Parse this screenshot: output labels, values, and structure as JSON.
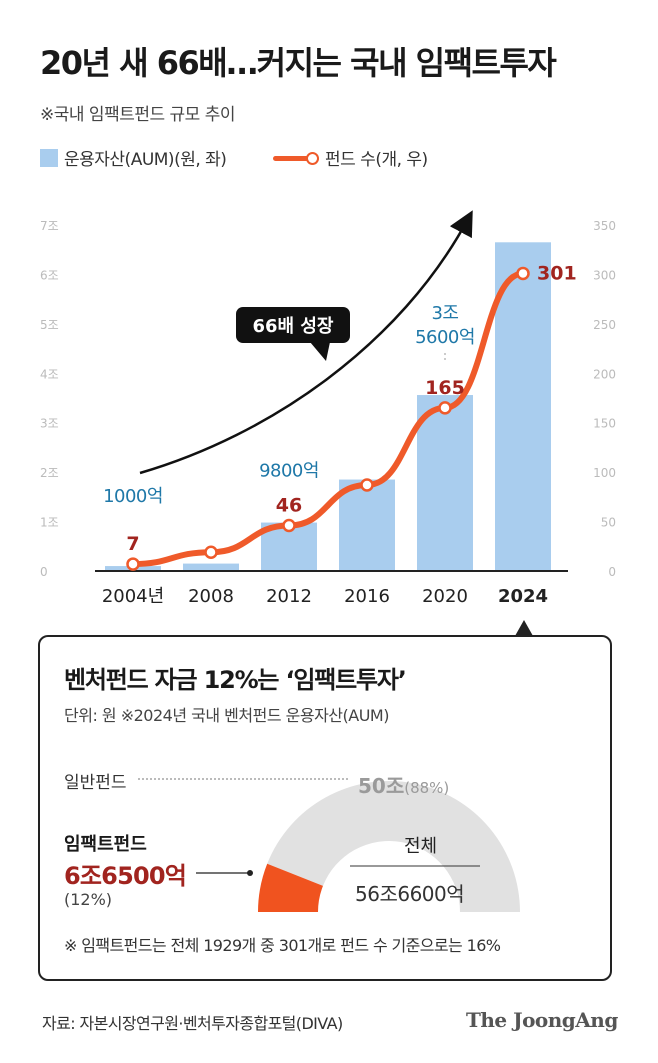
{
  "header": {
    "title": "20년 새 66배…커지는 국내 임팩트투자",
    "subtitle": "※국내 임팩트펀드 규모 추이"
  },
  "legend": {
    "bar": "운용자산(AUM)(원, 좌)",
    "line": "펀드 수(개, 우)"
  },
  "colors": {
    "bar": "#a9cdee",
    "line": "#ef5a2a",
    "aum_label": "#1f78a8",
    "count_label": "#a1241f",
    "gauge_general": "#e1e1e1",
    "gauge_impact": "#f0531f"
  },
  "chart_data": [
    {
      "type": "bar+line",
      "categories": [
        "2004년",
        "2008",
        "2012",
        "2016",
        "2020",
        "2024"
      ],
      "highlight_category": "2024",
      "series": [
        {
          "name": "운용자산(AUM)(원, 좌)",
          "axis": "left",
          "unit": "조 원",
          "values": [
            0.1,
            0.15,
            0.98,
            1.85,
            3.56,
            6.65
          ],
          "labels": [
            "1000억",
            "",
            "9800억",
            "",
            "3조\n5600억",
            "6조\n6500억"
          ]
        },
        {
          "name": "펀드 수(개, 우)",
          "axis": "right",
          "unit": "개",
          "values": [
            7,
            19,
            46,
            87,
            165,
            301
          ],
          "labels": [
            "7",
            "",
            "46",
            "",
            "165",
            "301"
          ]
        }
      ],
      "left_axis": {
        "ticks": [
          "0",
          "1조",
          "2조",
          "3조",
          "4조",
          "5조",
          "6조",
          "7조"
        ],
        "ylim": [
          0,
          7
        ]
      },
      "right_axis": {
        "ticks": [
          "0",
          "50",
          "100",
          "150",
          "200",
          "250",
          "300",
          "350"
        ],
        "ylim": [
          0,
          350
        ]
      },
      "annotation": "66배 성장"
    },
    {
      "type": "pie",
      "title": "벤처펀드 자금 12%는 ‘임팩트투자’",
      "unit": "단위: 원   ※2024년 국내 벤처펀드 운용자산(AUM)",
      "slices": [
        {
          "name": "일반펀드",
          "value": 50,
          "value_label": "50조",
          "pct_label": "(88%)",
          "percent": 88
        },
        {
          "name": "임팩트펀드",
          "value": 6.65,
          "value_label": "6조6500억",
          "pct_label": "(12%)",
          "percent": 12
        }
      ],
      "total_label": "전체",
      "total_value": "56조6600억",
      "note": "※ 임팩트펀드는 전체 1929개 중 301개로 펀드 수 기준으로는 16%"
    }
  ],
  "footer": {
    "source": "자료: 자본시장연구원·벤처투자종합포털(DIVA)",
    "brand": "The JoongAng"
  }
}
